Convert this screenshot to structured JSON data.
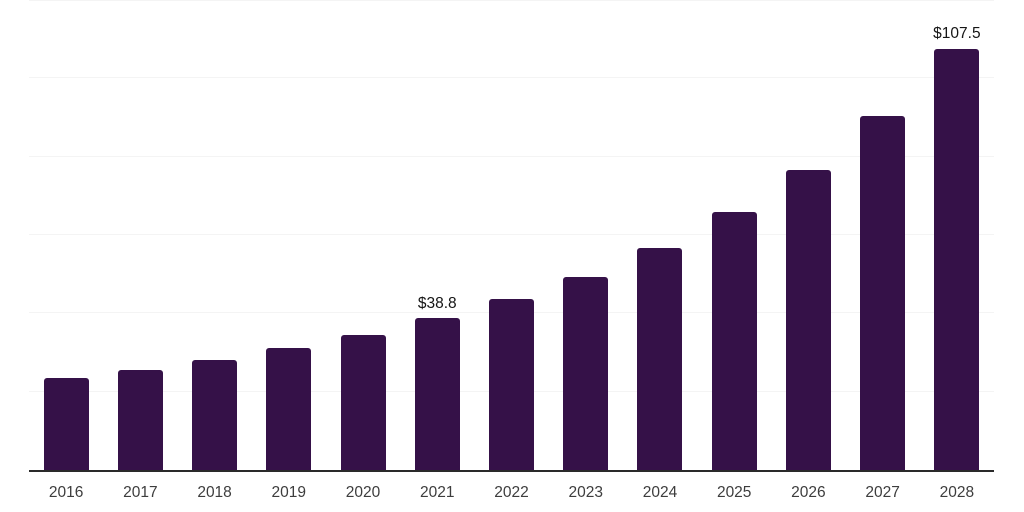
{
  "page": {
    "background": "#ffffff"
  },
  "chart_data": {
    "type": "bar",
    "title": "",
    "xlabel": "",
    "ylabel": "",
    "categories": [
      "2016",
      "2017",
      "2018",
      "2019",
      "2020",
      "2021",
      "2022",
      "2023",
      "2024",
      "2025",
      "2026",
      "2027",
      "2028"
    ],
    "values": [
      23.4,
      25.5,
      28.2,
      31.2,
      34.4,
      38.8,
      43.6,
      49.4,
      56.6,
      65.8,
      76.5,
      90.5,
      107.5
    ],
    "data_labels": [
      {
        "index": 5,
        "text": "$38.8"
      },
      {
        "index": 12,
        "text": "$107.5"
      }
    ],
    "ylim": [
      0,
      120
    ],
    "gridline_step": 20,
    "grid": "horizontal-only",
    "y_axis_tick_labels_visible": false,
    "legend": "none",
    "bar_color": "#351148",
    "gridline_color": "#f4f4f4",
    "axis_color": "#2a2a2a",
    "tick_label_color": "#3d3d3d",
    "value_label_color": "#151515"
  }
}
